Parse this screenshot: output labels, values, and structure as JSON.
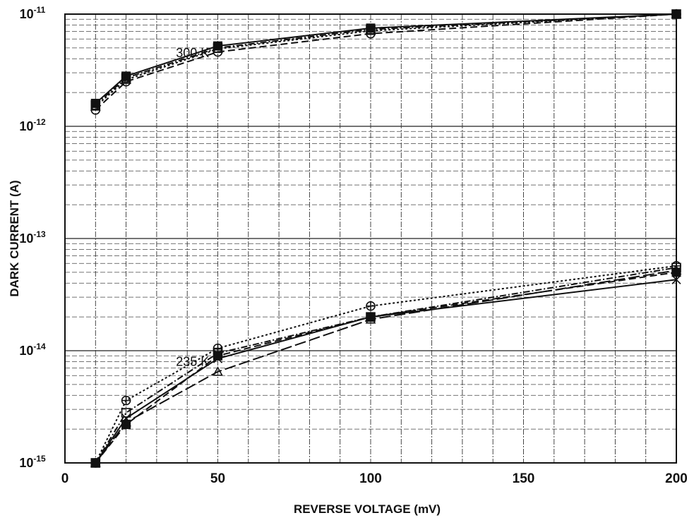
{
  "chart_data": {
    "type": "line",
    "title": "",
    "xlabel": "REVERSE VOLTAGE (mV)",
    "ylabel": "DARK CURRENT (A)",
    "xlim": [
      0,
      200
    ],
    "ylim": [
      1e-15,
      1e-11
    ],
    "yscale": "log",
    "grid": true,
    "legend": "none",
    "x_ticks": [
      "0",
      "50",
      "100",
      "150",
      "200"
    ],
    "y_ticks": [
      {
        "base": "10",
        "exp": "-15",
        "value": 1e-15
      },
      {
        "base": "10",
        "exp": "-14",
        "value": 1e-14
      },
      {
        "base": "10",
        "exp": "-13",
        "value": 1e-13
      },
      {
        "base": "10",
        "exp": "-12",
        "value": 1e-12
      },
      {
        "base": "10",
        "exp": "-11",
        "value": 1e-11
      }
    ],
    "annotations": [
      {
        "text": "300 K",
        "x": 40,
        "y": 4.5e-12
      },
      {
        "text": "235 K",
        "x": 40,
        "y": 8e-15
      }
    ],
    "series": [
      {
        "marker": "square-filled",
        "dash": "solid",
        "x": [
          10,
          20,
          50,
          100,
          200
        ],
        "y": [
          1.6e-12,
          2.8e-12,
          5.2e-12,
          7.5e-12,
          1e-11
        ]
      },
      {
        "marker": "circle",
        "dash": "dash",
        "x": [
          10,
          20,
          50,
          100,
          200
        ],
        "y": [
          1.4e-12,
          2.5e-12,
          4.6e-12,
          6.7e-12,
          1e-11
        ]
      },
      {
        "marker": "triangle",
        "dash": "dot",
        "x": [
          10,
          20,
          50,
          100,
          200
        ],
        "y": [
          1.5e-12,
          2.6e-12,
          4.9e-12,
          7.1e-12,
          1e-11
        ]
      },
      {
        "marker": "square",
        "dash": "dashdot",
        "x": [
          10,
          20,
          50,
          100,
          200
        ],
        "y": [
          1.55e-12,
          2.7e-12,
          5e-12,
          7.3e-12,
          1e-11
        ]
      },
      {
        "marker": "circle-plus",
        "dash": "dot",
        "x": [
          10,
          20,
          50,
          100,
          200
        ],
        "y": [
          1e-15,
          3.6e-15,
          1.05e-14,
          2.5e-14,
          5.7e-14
        ]
      },
      {
        "marker": "square",
        "dash": "dashdot",
        "x": [
          10,
          20,
          50,
          100,
          200
        ],
        "y": [
          1e-15,
          2.8e-15,
          9.5e-15,
          2e-14,
          5.5e-14
        ]
      },
      {
        "marker": "x",
        "dash": "solid",
        "x": [
          10,
          20,
          50,
          100,
          200
        ],
        "y": [
          1e-15,
          2.5e-15,
          8.5e-15,
          2e-14,
          4.3e-14
        ]
      },
      {
        "marker": "square-filled",
        "dash": "dash",
        "x": [
          10,
          20,
          50,
          100,
          200
        ],
        "y": [
          1e-15,
          2.2e-15,
          9e-15,
          2e-14,
          5e-14
        ]
      },
      {
        "marker": "triangle",
        "dash": "longdash",
        "x": [
          10,
          20,
          50,
          100,
          200
        ],
        "y": [
          1e-15,
          2.3e-15,
          6.5e-15,
          1.9e-14,
          5.2e-14
        ]
      }
    ]
  }
}
